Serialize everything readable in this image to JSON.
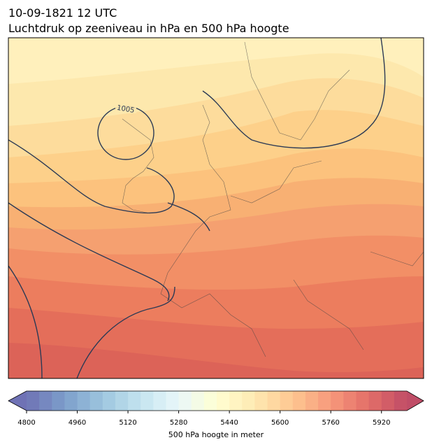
{
  "header": {
    "date": "10-09-1821 12 UTC",
    "title": "Luchtdruk op zeeniveau in hPa en 500 hPa hoogte"
  },
  "map": {
    "contour_label": "1005"
  },
  "colorbar": {
    "label": "500 hPa hoogte in meter",
    "lim": [
      4800,
      6000
    ],
    "ticks": [
      4800,
      4960,
      5120,
      5280,
      5440,
      5600,
      5760,
      5920
    ]
  }
}
